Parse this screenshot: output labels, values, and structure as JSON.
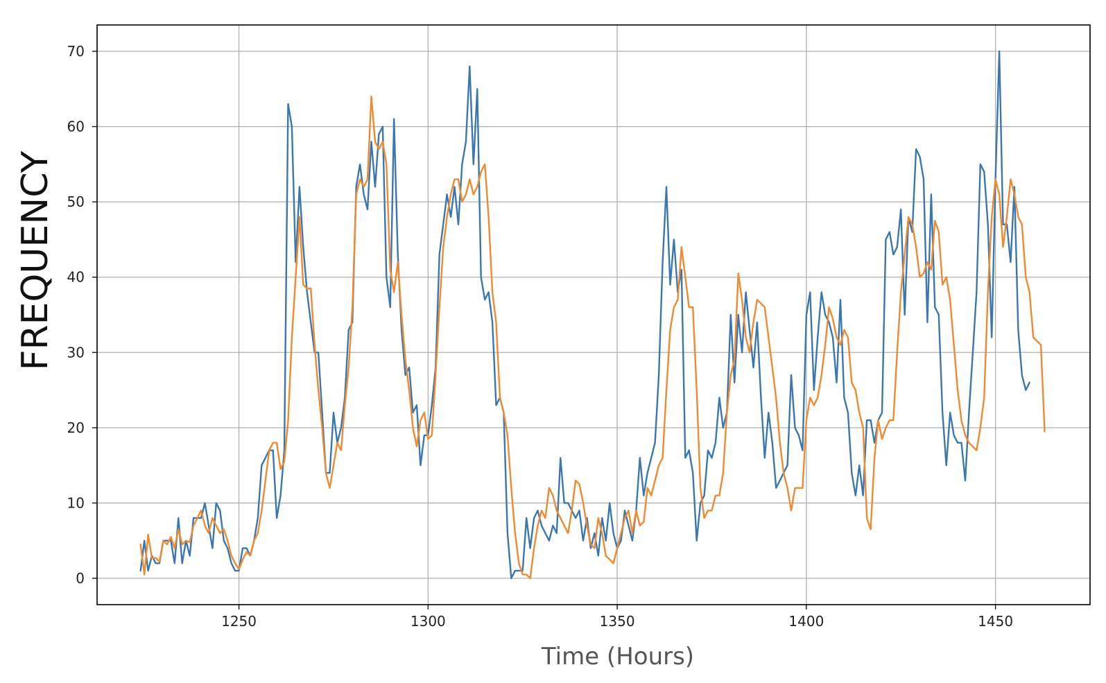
{
  "chart_data": {
    "type": "line",
    "title": "",
    "xlabel": "Time (Hours)",
    "ylabel": "FREQUENCY",
    "xlim": [
      1212.5,
      1475
    ],
    "ylim": [
      -3.5,
      73.5
    ],
    "xticks": [
      1250,
      1300,
      1350,
      1400,
      1450
    ],
    "yticks": [
      0,
      10,
      20,
      30,
      40,
      50,
      60,
      70
    ],
    "grid": true,
    "legend": "none",
    "x_start": 1224,
    "x_step": 1,
    "series": [
      {
        "color": "#3a76af",
        "values": [
          1,
          5,
          1,
          3,
          2,
          2,
          5,
          5,
          5,
          2,
          8,
          2,
          5,
          3,
          8,
          8,
          8,
          10,
          7,
          4,
          10,
          9,
          5,
          4,
          2,
          1,
          1,
          4,
          4,
          3,
          5,
          8,
          15,
          16,
          17,
          17,
          8,
          11,
          17,
          63,
          60,
          42,
          52,
          44,
          38,
          34,
          30,
          30,
          22,
          14,
          14,
          22,
          18,
          20,
          24,
          33,
          34,
          52,
          55,
          51,
          49,
          58,
          52,
          59,
          60,
          40,
          36,
          61,
          43,
          33,
          27,
          28,
          22,
          23,
          15,
          19,
          19,
          23,
          28,
          43,
          47,
          51,
          48,
          52,
          47,
          55,
          58,
          68,
          55,
          65,
          40,
          37,
          38,
          34,
          23,
          24,
          22,
          6,
          0,
          1,
          1,
          1,
          8,
          4,
          8,
          9,
          7,
          6,
          5,
          7,
          6,
          16,
          10,
          10,
          9,
          8,
          9,
          5,
          8,
          4,
          6,
          3,
          8,
          5,
          10,
          6,
          4,
          5,
          9,
          7,
          5,
          9,
          16,
          11,
          14,
          16,
          18,
          27,
          42,
          52,
          39,
          45,
          38,
          41,
          16,
          17,
          14,
          5,
          10,
          11,
          17,
          16,
          18,
          24,
          20,
          22,
          35,
          26,
          35,
          30,
          38,
          33,
          28,
          34,
          24,
          16,
          22,
          18,
          12,
          13,
          14,
          15,
          27,
          20,
          19,
          17,
          35,
          38,
          25,
          32,
          38,
          35,
          34,
          32,
          26,
          37,
          24,
          22,
          14,
          11,
          15,
          11,
          21,
          21,
          18,
          21,
          22,
          45,
          46,
          43,
          44,
          49,
          35,
          48,
          46,
          57,
          56,
          53,
          34,
          51,
          36,
          35,
          22,
          15,
          22,
          19,
          18,
          18,
          13,
          22,
          30,
          38,
          55,
          54,
          47,
          32,
          53,
          70,
          47,
          47,
          42,
          52,
          33,
          27,
          25,
          26
        ]
      },
      {
        "color": "#f0892f",
        "values": [
          4.5,
          0.5,
          5.8,
          2.7,
          2.7,
          2.2,
          5,
          4.5,
          5.5,
          4,
          6.5,
          4.5,
          5,
          4.8,
          7,
          8,
          9,
          7,
          6,
          8,
          7,
          6,
          6.5,
          5,
          3,
          2,
          1.2,
          2.5,
          3.5,
          3,
          5,
          6,
          9,
          13,
          17,
          18,
          18,
          14.5,
          15.5,
          21,
          32,
          40,
          48,
          39,
          38.5,
          38.5,
          31,
          25,
          20,
          14,
          12,
          15,
          18,
          17,
          23,
          28,
          36,
          51,
          53,
          52,
          53,
          64,
          58,
          57,
          58,
          55,
          41,
          38,
          42,
          35,
          29,
          25,
          20,
          17.5,
          21,
          22,
          18.5,
          19,
          27,
          36,
          44,
          48,
          51,
          53,
          53,
          50,
          51,
          53,
          51,
          52,
          54,
          55,
          48,
          38,
          34,
          24,
          22,
          19,
          12,
          6,
          2,
          0.5,
          0.5,
          0,
          4,
          7,
          9,
          8,
          12,
          11,
          9,
          8,
          7,
          6,
          9,
          13,
          12.5,
          10,
          7,
          4.5,
          4,
          8,
          6,
          3,
          2.5,
          2,
          4,
          6,
          8,
          9,
          6,
          9,
          7,
          7.5,
          12,
          11,
          13,
          15,
          16,
          25,
          33,
          36,
          37,
          44,
          40,
          36,
          36,
          25,
          12,
          8,
          9,
          9,
          11,
          11,
          14,
          22,
          27,
          29,
          40.5,
          37,
          32,
          30,
          34,
          37,
          36.5,
          36,
          32,
          28,
          24,
          18,
          14,
          12,
          9,
          12,
          12,
          12,
          21,
          24,
          23,
          24,
          27,
          31,
          36,
          34.5,
          32,
          31,
          33,
          32,
          26,
          25,
          22,
          20,
          8,
          6.5,
          16,
          21,
          18.5,
          20,
          21,
          21,
          30,
          38,
          43,
          48,
          47,
          44,
          40,
          40.5,
          42,
          41,
          47.5,
          46,
          39,
          40,
          37,
          31,
          25,
          21,
          19,
          18,
          17.5,
          17,
          20,
          24,
          38,
          48,
          53,
          51,
          44,
          48,
          53,
          51,
          48,
          47,
          40,
          38,
          32,
          31.5,
          31,
          19.5
        ]
      }
    ]
  }
}
